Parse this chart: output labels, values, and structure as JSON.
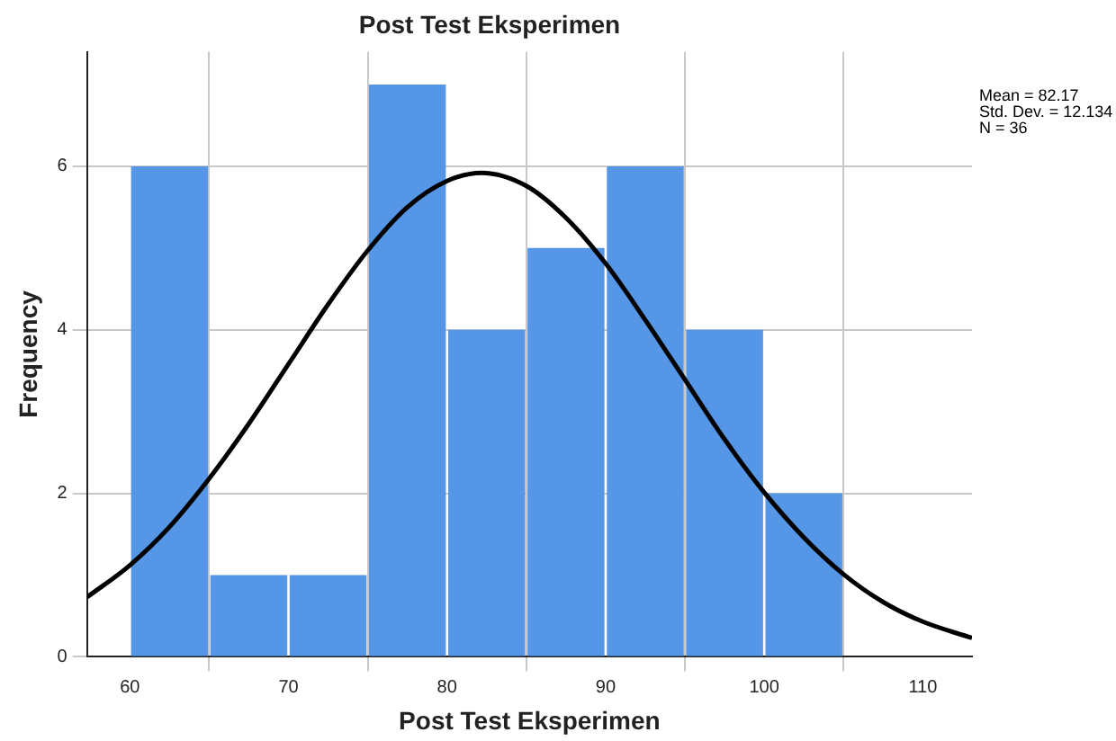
{
  "chart_data": {
    "type": "histogram",
    "title": "Post Test Eksperimen",
    "xlabel": "Post Test Eksperimen",
    "ylabel": "Frequency",
    "bins": [
      60,
      65,
      70,
      75,
      80,
      85,
      90,
      95,
      100,
      105
    ],
    "values": [
      6,
      1,
      1,
      7,
      4,
      5,
      6,
      4,
      2
    ],
    "color": "#5596e6",
    "series": [
      {
        "type": "line",
        "color": "#000000",
        "x": [
          57.3,
          60,
          62.5,
          65,
          67.5,
          70,
          72.5,
          75,
          77.5,
          80,
          82.17,
          85,
          87.5,
          90,
          92.5,
          95,
          97.5,
          100,
          102.5,
          105,
          107.5,
          110,
          113.1
        ],
        "values": [
          0.73,
          1.12,
          1.59,
          2.18,
          2.85,
          3.58,
          4.31,
          4.97,
          5.5,
          5.82,
          5.92,
          5.76,
          5.37,
          4.81,
          4.12,
          3.39,
          2.66,
          2.01,
          1.46,
          1.01,
          0.67,
          0.43,
          0.23
        ]
      }
    ],
    "xlim": [
      57.3,
      113.1
    ],
    "xticks": [
      60,
      70,
      80,
      90,
      100,
      110
    ],
    "ylim": [
      0,
      7.4
    ],
    "yticks": [
      0,
      2,
      4,
      6
    ],
    "grid": true,
    "legend": false,
    "marker": "none",
    "annotations": [
      "Mean = 82.17",
      "Std. Dev. = 12.134",
      "N = 36"
    ]
  }
}
